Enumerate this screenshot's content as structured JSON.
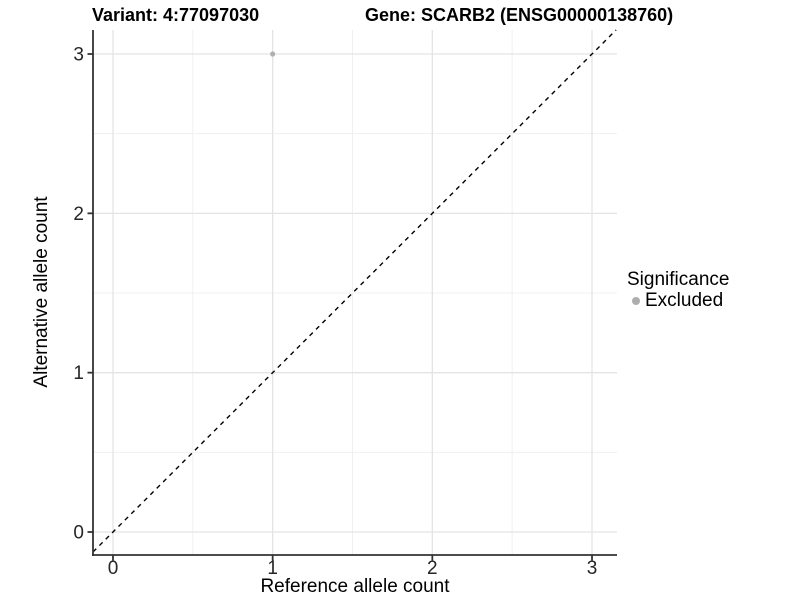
{
  "chart_data": {
    "type": "scatter",
    "title_left": "Variant: 4:77097030",
    "title_right": "Gene: SCARB2 (ENSG00000138760)",
    "xlabel": "Reference allele count",
    "ylabel": "Alternative allele count",
    "x_ticks": [
      0,
      1,
      2,
      3
    ],
    "y_ticks": [
      0,
      1,
      2,
      3
    ],
    "x_minor_gridlines": [
      0.5,
      1.5,
      2.5
    ],
    "y_minor_gridlines": [
      0.5,
      1.5,
      2.5
    ],
    "xlim": [
      -0.125,
      3.156
    ],
    "ylim": [
      -0.144,
      3.151
    ],
    "points": [
      {
        "x": 1,
        "y": 3,
        "series": "Excluded"
      }
    ],
    "reference_line": {
      "type": "identity",
      "style": "dashed"
    },
    "grid": "major+minor",
    "legend": {
      "title": "Significance",
      "position": "right",
      "items": [
        {
          "label": "Excluded",
          "color": "#aeaeae"
        }
      ]
    },
    "colors": {
      "point": "#b0b0b0",
      "grid_major": "#e4e4e4",
      "grid_minor": "#f0f0f0",
      "axis": "#333333",
      "tick_label": "#262626",
      "dashed_line": "#000000"
    }
  }
}
